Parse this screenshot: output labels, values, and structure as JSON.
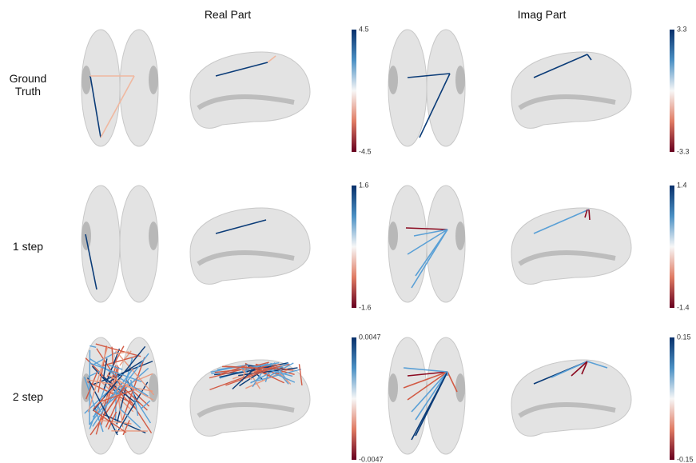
{
  "columns": [
    "Real Part",
    "Imag Part"
  ],
  "rows": [
    {
      "label": "Ground Truth",
      "real_colorbar": {
        "max": 4.5,
        "min": -4.5
      },
      "imag_colorbar": {
        "max": 3.3,
        "min": -3.3
      }
    },
    {
      "label": "1 step",
      "real_colorbar": {
        "max": 1.6,
        "min": -1.6
      },
      "imag_colorbar": {
        "max": 1.4,
        "min": -1.4
      }
    },
    {
      "label": "2 step",
      "real_colorbar": {
        "max": 0.0047,
        "min": -0.0047
      },
      "imag_colorbar": {
        "max": 0.15,
        "min": -0.15
      }
    }
  ]
}
